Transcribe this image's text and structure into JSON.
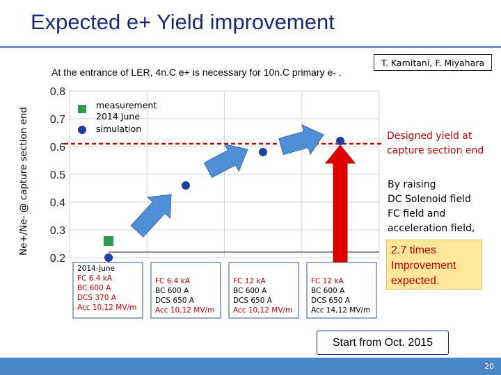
{
  "title": "Expected e+ Yield improvement",
  "authors": "T. Kamitani, F. Miyahara",
  "subtitle": "At the entrance of LER, 4n.C e+ is necessary for 10n.C primary e- .",
  "notes": {
    "designed": "Designed yield at capture section end",
    "raising": [
      "By raising",
      "DC Solenoid field",
      "FC field and",
      "acceleration field,"
    ],
    "improvement": [
      "2.7 times",
      "Improvement",
      "expected."
    ],
    "start": "Start from Oct. 2015"
  },
  "page_number": "20",
  "colors": {
    "title": "#1a2a7a",
    "measurement": "#2e9a4a",
    "simulation": "#1f3f9f",
    "arrow": "#4f8fd6",
    "target": "#c00000",
    "improve_bg": "#ffe699",
    "footer": "#4a86c7"
  },
  "chart_data": {
    "type": "scatter",
    "ylabel": "Ne+/Ne- @ capture section end",
    "ylim": [
      0.2,
      0.8
    ],
    "yticks": [
      "0.2",
      "0.3",
      "0.4",
      "0.5",
      "0.6",
      "0.7",
      "0.8"
    ],
    "grid": true,
    "legend": [
      {
        "label": "measurement",
        "marker": "square"
      },
      {
        "label": "2014 June",
        "marker": "none"
      },
      {
        "label": "simulation",
        "marker": "circle"
      }
    ],
    "series": [
      {
        "name": "measurement",
        "marker": "square",
        "points": [
          {
            "stage": 0,
            "y": 0.26
          }
        ]
      },
      {
        "name": "simulation",
        "marker": "circle",
        "points": [
          {
            "stage": 0,
            "y": 0.2
          },
          {
            "stage": 1,
            "y": 0.46
          },
          {
            "stage": 2,
            "y": 0.58
          },
          {
            "stage": 3,
            "y": 0.62
          }
        ]
      }
    ],
    "target_line": {
      "y": 0.61,
      "label": "Designed yield at capture section end"
    },
    "conditions": [
      {
        "lines": [
          "2014-June",
          "FC 6.4 kA",
          "BC 600 A",
          "DCS 370 A",
          "Acc 10,12 MV/m"
        ],
        "highlight": [
          1,
          2,
          3,
          4
        ]
      },
      {
        "lines": [
          "FC 6.4 kA",
          "BC 600 A",
          "DCS 650 A",
          "Acc 10,12 MV/m"
        ],
        "highlight": [
          0,
          3
        ]
      },
      {
        "lines": [
          "FC 12 kA",
          "BC 600 A",
          "DCS 650 A",
          "Acc 10,12 MV/m"
        ],
        "highlight": [
          0,
          3
        ]
      },
      {
        "lines": [
          "FC 12 kA",
          "BC 600 A",
          "DCS 650 A",
          "Acc 14,12 MV/m"
        ],
        "highlight": [
          0
        ]
      }
    ]
  }
}
